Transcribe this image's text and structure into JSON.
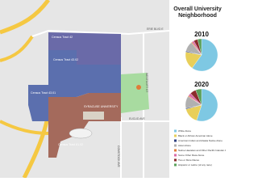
{
  "title": "Overall University Neighborhood",
  "map_labels": [
    "Census Tract 42",
    "Census Tract 43.02",
    "Census Tract 43.01",
    "Census Tract 61.02",
    "SYRACUSE UNIVERSITY"
  ],
  "roads": [
    "ERIE BLVD E",
    "EUCLID AVE",
    "WESTCOTT ST",
    "COMSTOCK AVE"
  ],
  "legend": [
    {
      "name": "White Alone",
      "color": "#7ec8e3"
    },
    {
      "name": "Black or African American Alone",
      "color": "#e8cf5a"
    },
    {
      "name": "American Indian and Alaska Native Alone",
      "color": "#2e3f7f"
    },
    {
      "name": "Asian Alone",
      "color": "#b0b0b0"
    },
    {
      "name": "Native Hawaiian and Other Pacific Islander Alone",
      "color": "#e07b39"
    },
    {
      "name": "Some Other Race Alone",
      "color": "#d96aa7"
    },
    {
      "name": "Two or More Races",
      "color": "#8b2c2c"
    },
    {
      "name": "Hispanic or Latino (of any race)",
      "color": "#5aa05a"
    }
  ],
  "pies": [
    {
      "year": "2010",
      "values": [
        60,
        18,
        1,
        10,
        1,
        2,
        4,
        4
      ]
    },
    {
      "year": "2020",
      "values": [
        55,
        16,
        1,
        12,
        1,
        3,
        6,
        6
      ]
    }
  ]
}
